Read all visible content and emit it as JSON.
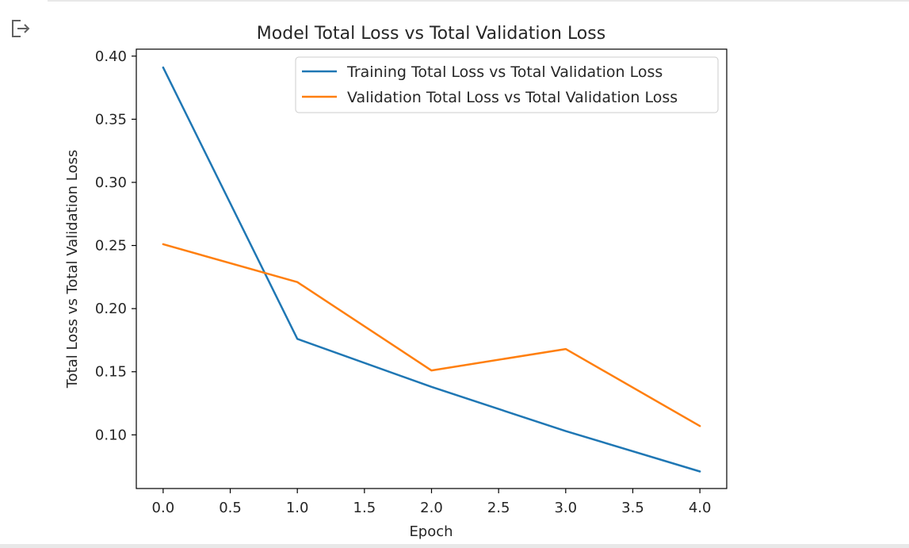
{
  "cell": {
    "output_icon": "output-redirect-icon"
  },
  "chart_data": {
    "type": "line",
    "title": "Model Total Loss vs Total Validation Loss",
    "xlabel": "Epoch",
    "ylabel": "Total Loss vs Total Validation Loss",
    "x": [
      0,
      1,
      2,
      3,
      4
    ],
    "xlim": [
      -0.2,
      4.2
    ],
    "ylim": [
      0.0575,
      0.4055
    ],
    "x_ticks": [
      "0.0",
      "0.5",
      "1.0",
      "1.5",
      "2.0",
      "2.5",
      "3.0",
      "3.5",
      "4.0"
    ],
    "y_ticks": [
      "0.10",
      "0.15",
      "0.20",
      "0.25",
      "0.30",
      "0.35",
      "0.40"
    ],
    "grid": false,
    "legend_position": "top-right",
    "series": [
      {
        "name": "Training Total Loss vs Total Validation Loss",
        "color": "#1f77b4",
        "values": [
          0.391,
          0.176,
          0.138,
          0.103,
          0.071
        ]
      },
      {
        "name": "Validation Total Loss vs Total Validation Loss",
        "color": "#ff7f0e",
        "values": [
          0.251,
          0.221,
          0.151,
          0.168,
          0.107
        ]
      }
    ]
  }
}
